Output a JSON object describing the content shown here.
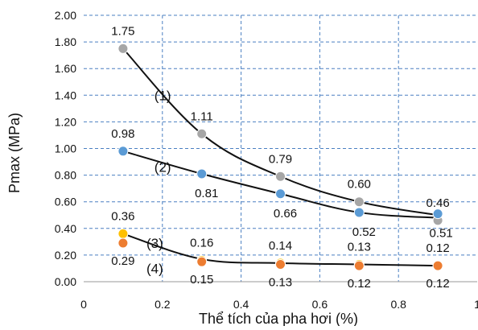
{
  "chart_data": {
    "type": "scatter",
    "xlabel": "Thể tích của pha hơi (%)",
    "ylabel": "Pmax (MPa)",
    "xlim": [
      0,
      1
    ],
    "ylim": [
      0,
      2
    ],
    "x_ticks": [
      "0",
      "0.2",
      "0.4",
      "0.6",
      "0.8",
      "1"
    ],
    "y_ticks": [
      "0.00",
      "0.20",
      "0.40",
      "0.60",
      "0.80",
      "1.00",
      "1.20",
      "1.40",
      "1.60",
      "1.80",
      "2.00"
    ],
    "grid": "dashed",
    "legend": "none",
    "series": [
      {
        "name": "(1)",
        "color": "#a6a6a6",
        "x": [
          0.1,
          0.3,
          0.5,
          0.7,
          0.9
        ],
        "values": [
          1.75,
          1.11,
          0.79,
          0.6,
          0.46
        ],
        "labels": [
          "1.75",
          "1.11",
          "0.79",
          "0.60",
          "0.46"
        ]
      },
      {
        "name": "(2)",
        "color": "#5b9bd5",
        "x": [
          0.1,
          0.3,
          0.5,
          0.7,
          0.9
        ],
        "values": [
          0.98,
          0.81,
          0.66,
          0.52,
          0.51
        ],
        "labels": [
          "0.98",
          "0.81",
          "0.66",
          "0.52",
          "0.51"
        ]
      },
      {
        "name": "(3)",
        "color": "#ffc000",
        "x": [
          0.1,
          0.3,
          0.5,
          0.7,
          0.9
        ],
        "values": [
          0.36,
          0.16,
          0.14,
          0.13,
          0.12
        ],
        "labels": [
          "0.36",
          "0.16",
          "0.14",
          "0.13",
          "0.12"
        ]
      },
      {
        "name": "(4)",
        "color": "#ed7d31",
        "x": [
          0.1,
          0.3,
          0.5,
          0.7,
          0.9
        ],
        "values": [
          0.29,
          0.15,
          0.13,
          0.12,
          0.12
        ],
        "labels": [
          "0.29",
          "0.15",
          "0.13",
          "0.12",
          "0.12"
        ]
      }
    ]
  }
}
